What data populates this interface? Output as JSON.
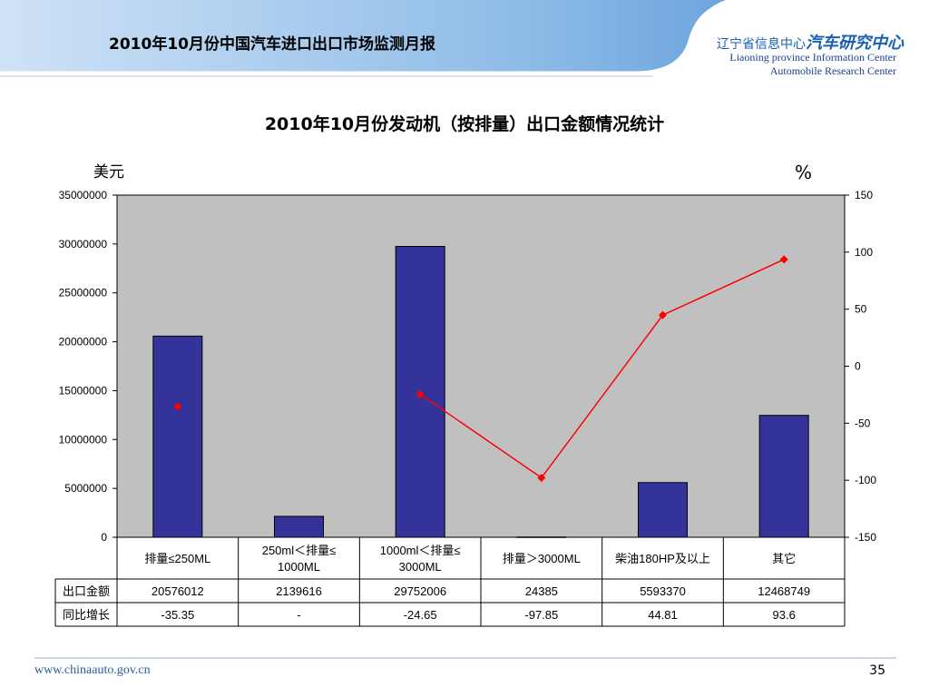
{
  "header": {
    "report_title": "2010年10月份中国汽车进口出口市场监测月报",
    "org_cn_small": "辽宁省信息中心",
    "org_cn_big": "汽车研究中心",
    "org_en_line1": "Liaoning province Information Center",
    "org_en_line2": "Automobile Research Center"
  },
  "footer": {
    "url": "www.chinaauto.gov.cn",
    "page_number": "35"
  },
  "chart_data": {
    "type": "bar",
    "title": "2010年10月份发动机（按排量）出口金额情况统计",
    "y_left_unit": "美元",
    "y_right_unit": "%",
    "categories": [
      [
        "排量≤250ML"
      ],
      [
        "250ml＜排量≤",
        "1000ML"
      ],
      [
        "1000ml＜排量≤",
        "3000ML"
      ],
      [
        "排量＞3000ML"
      ],
      [
        "柴油180HP及以上"
      ],
      [
        "其它"
      ]
    ],
    "series": [
      {
        "name": "出口金额",
        "type": "bar",
        "axis": "left",
        "values": [
          20576012,
          2139616,
          29752006,
          24385,
          5593370,
          12468749
        ],
        "display": [
          "20576012",
          "2139616",
          "29752006",
          "24385",
          "5593370",
          "12468749"
        ],
        "color": "#333399"
      },
      {
        "name": "同比增长",
        "type": "line",
        "axis": "right",
        "values": [
          -35.35,
          null,
          -24.65,
          -97.85,
          44.81,
          93.6
        ],
        "display": [
          "-35.35",
          "-",
          "-24.65",
          "-97.85",
          "44.81",
          "93.6"
        ],
        "color": "#ff0000"
      }
    ],
    "y_left": {
      "min": 0,
      "max": 35000000,
      "ticks": [
        "35000000",
        "30000000",
        "25000000",
        "20000000",
        "15000000",
        "10000000",
        "5000000",
        "0"
      ]
    },
    "y_right": {
      "min": -150,
      "max": 150,
      "ticks": [
        "150",
        "100",
        "50",
        "0",
        "-50",
        "-100",
        "-150"
      ]
    },
    "grid": false,
    "plot_background": "#c0c0c0",
    "legend": "table"
  }
}
